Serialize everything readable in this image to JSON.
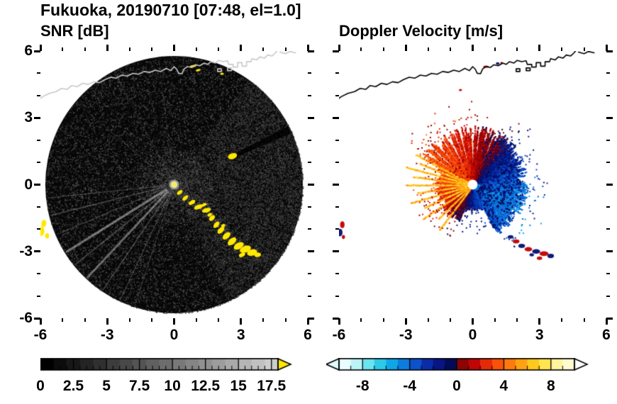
{
  "title": "Fukuoka, 20190710 [07:48, el=1.0]",
  "panels": {
    "snr": {
      "subtitle": "SNR [dB]"
    },
    "doppler": {
      "subtitle": "Doppler Velocity [m/s]"
    }
  },
  "chart_data": [
    {
      "type": "heatmap",
      "title": "SNR [dB]",
      "xlim": [
        -6,
        6
      ],
      "ylim": [
        -6,
        6
      ],
      "xticks": [
        -6,
        -3,
        0,
        3,
        6
      ],
      "yticks": [
        -6,
        -3,
        0,
        3,
        6
      ],
      "minor_tick_step": 1,
      "colorbar": {
        "range": [
          0,
          18
        ],
        "major_ticks": [
          0,
          2.5,
          5,
          7.5,
          10,
          12.5,
          15,
          17.5
        ],
        "minor_step": 0.5,
        "colormap": "grayscale",
        "gray_max": 205,
        "over_arrow_color": "#ffe600"
      },
      "scene": {
        "disk_color": "#060606",
        "radius": 5.78,
        "noise_points": 26000,
        "spokes": [
          [
            186,
            1.2,
            0.28
          ],
          [
            194,
            1.4,
            0.3
          ],
          [
            203,
            1.2,
            0.25
          ],
          [
            212,
            3.2,
            0.5
          ],
          [
            219,
            1.6,
            0.3
          ],
          [
            227,
            3.0,
            0.45
          ],
          [
            236,
            1.4,
            0.3
          ],
          [
            245,
            1.2,
            0.26
          ],
          [
            252,
            1.0,
            0.22
          ],
          [
            118,
            1.0,
            0.14
          ],
          [
            140,
            1.0,
            0.12
          ],
          [
            97,
            1.0,
            0.1
          ]
        ],
        "east_haze_angles": [
          -65,
          55
        ],
        "shadow_wedge": {
          "angle": 25.5,
          "from_r": 3.0,
          "width_deg": 3.5
        },
        "clutter_color": "#ffe800",
        "clutter_blobs": [
          [
            0.25,
            -0.35,
            0.28,
            0.16,
            -35
          ],
          [
            0.5,
            -0.6,
            0.3,
            0.16,
            -40
          ],
          [
            0.8,
            -0.8,
            0.34,
            0.18,
            -30
          ],
          [
            1.1,
            -1.0,
            0.42,
            0.2,
            -20
          ],
          [
            1.45,
            -1.15,
            0.4,
            0.2,
            -15
          ],
          [
            1.35,
            -0.9,
            0.22,
            0.14,
            -20
          ],
          [
            1.7,
            -1.5,
            0.3,
            0.2,
            -45
          ],
          [
            1.9,
            -1.8,
            0.34,
            0.2,
            -50
          ],
          [
            2.1,
            -2.05,
            0.38,
            0.22,
            -45
          ],
          [
            2.35,
            -2.3,
            0.42,
            0.24,
            -40
          ],
          [
            2.6,
            -2.55,
            0.46,
            0.26,
            -40
          ],
          [
            2.9,
            -2.75,
            0.5,
            0.28,
            -30
          ],
          [
            3.2,
            -2.9,
            0.52,
            0.3,
            -20
          ],
          [
            3.5,
            -3.05,
            0.46,
            0.28,
            -15
          ],
          [
            3.75,
            -3.15,
            0.3,
            0.2,
            -10
          ],
          [
            3.05,
            -3.15,
            0.3,
            0.18,
            -25
          ],
          [
            2.2,
            -1.85,
            0.2,
            0.14,
            -40
          ],
          [
            1.6,
            -1.35,
            0.22,
            0.14,
            -30
          ],
          [
            2.62,
            1.28,
            0.42,
            0.26,
            -18
          ],
          [
            -5.85,
            -1.75,
            0.22,
            0.34,
            10
          ],
          [
            -5.95,
            -2.1,
            0.26,
            0.4,
            5
          ],
          [
            -5.7,
            -2.3,
            0.18,
            0.24,
            0
          ],
          [
            0.85,
            5.32,
            0.3,
            0.1,
            -10
          ],
          [
            1.08,
            5.14,
            0.22,
            0.1,
            -15
          ],
          [
            2.15,
            4.98,
            0.16,
            0.1,
            0
          ]
        ],
        "coastline_color": "#c9c9c9"
      }
    },
    {
      "type": "heatmap",
      "title": "Doppler Velocity [m/s]",
      "xlim": [
        -6,
        6
      ],
      "ylim": [
        -6,
        6
      ],
      "xticks": [
        -6,
        -3,
        0,
        3,
        6
      ],
      "yticks": [
        -6,
        -3,
        0,
        3,
        6
      ],
      "minor_tick_step": 1,
      "colorbar": {
        "range": [
          -10,
          10
        ],
        "major_ticks": [
          -8,
          -4,
          0,
          4,
          8
        ],
        "minor_step": 1,
        "under_arrow_color": "#dffbfb",
        "over_arrow_color": "#ffffff",
        "segment_colors": [
          "#e8feff",
          "#baf3f8",
          "#6ae4f0",
          "#2cc9e8",
          "#0fa6e8",
          "#0d7ce0",
          "#0b52cc",
          "#0a2ca8",
          "#071682",
          "#040b56",
          "#8c0404",
          "#c00505",
          "#e62a07",
          "#fb5109",
          "#ff7a0d",
          "#ffa212",
          "#ffc81e",
          "#ffe550",
          "#fff39e",
          "#fffbd0"
        ]
      },
      "scene": {
        "blue_dir_deg": 335,
        "amplitude": 4.4,
        "noise": 1.3,
        "white_gaps": [
          [
            68,
            1.2
          ],
          [
            76,
            1.0
          ],
          [
            84,
            1.3
          ],
          [
            91,
            2.0
          ],
          [
            97,
            1.0
          ],
          [
            104,
            1.2
          ],
          [
            110,
            1.0
          ],
          [
            117,
            2.0
          ],
          [
            124,
            1.2
          ],
          [
            131,
            1.0
          ],
          [
            138,
            1.4
          ],
          [
            145,
            1.0
          ],
          [
            342,
            0.8
          ],
          [
            5,
            0.7
          ]
        ],
        "orange_streaks": [
          [
            152,
            2.9
          ],
          [
            158,
            2.6
          ],
          [
            165,
            3.1
          ],
          [
            172,
            2.7
          ],
          [
            180,
            3.0
          ],
          [
            188,
            2.5
          ],
          [
            196,
            2.9
          ],
          [
            205,
            2.4
          ],
          [
            214,
            2.7
          ],
          [
            224,
            2.2
          ],
          [
            233,
            2.5
          ]
        ],
        "center_dot": {
          "radius": 0.22,
          "color": "#ffffff"
        },
        "clutter_blobs": [
          [
            1.7,
            -2.35,
            0.26,
            0.16,
            "#101a78"
          ],
          [
            1.95,
            -2.55,
            0.3,
            0.18,
            "#c60b0b"
          ],
          [
            2.2,
            -2.75,
            0.3,
            0.18,
            "#101a78"
          ],
          [
            2.5,
            -2.9,
            0.34,
            0.2,
            "#c60b0b"
          ],
          [
            2.85,
            -3.0,
            0.36,
            0.2,
            "#101a78"
          ],
          [
            3.2,
            -3.1,
            0.4,
            0.22,
            "#c60b0b"
          ],
          [
            3.5,
            -3.2,
            0.3,
            0.2,
            "#101a78"
          ],
          [
            3.0,
            -3.3,
            0.24,
            0.16,
            "#c60b0b"
          ],
          [
            2.65,
            -3.15,
            0.2,
            0.14,
            "#101a78"
          ],
          [
            -5.85,
            -1.8,
            0.2,
            0.3,
            "#c60b0b"
          ],
          [
            -5.95,
            -2.15,
            0.22,
            0.34,
            "#101a78"
          ],
          [
            -5.8,
            -2.35,
            0.14,
            0.18,
            "#c60b0b"
          ],
          [
            0.6,
            5.3,
            0.26,
            0.1,
            "#c60b0b"
          ],
          [
            1.12,
            5.44,
            0.16,
            0.12,
            "#101a78"
          ],
          [
            1.3,
            5.47,
            0.12,
            0.08,
            "#c60b0b"
          ],
          [
            -0.55,
            4.25,
            0.14,
            0.1,
            "#c60b0b"
          ]
        ],
        "coastline_color": "#000000"
      }
    }
  ],
  "coastline": [
    [
      -6.25,
      3.7
    ],
    [
      -5.9,
      3.95
    ],
    [
      -5.6,
      4.1
    ],
    [
      -5.3,
      4.18
    ],
    [
      -5.05,
      4.32
    ],
    [
      -4.8,
      4.28
    ],
    [
      -4.6,
      4.45
    ],
    [
      -4.35,
      4.4
    ],
    [
      -4.1,
      4.55
    ],
    [
      -3.85,
      4.5
    ],
    [
      -3.6,
      4.62
    ],
    [
      -3.35,
      4.58
    ],
    [
      -3.1,
      4.72
    ],
    [
      -2.85,
      4.82
    ],
    [
      -2.6,
      4.78
    ],
    [
      -2.35,
      4.92
    ],
    [
      -2.1,
      4.88
    ],
    [
      -1.85,
      5.0
    ],
    [
      -1.6,
      4.96
    ],
    [
      -1.35,
      5.08
    ],
    [
      -1.1,
      5.04
    ],
    [
      -0.85,
      5.14
    ],
    [
      -0.6,
      5.08
    ],
    [
      -0.35,
      5.22
    ],
    [
      -0.15,
      5.12
    ],
    [
      0.0,
      5.3
    ],
    [
      0.12,
      5.18
    ],
    [
      0.2,
      5.0
    ],
    [
      0.35,
      4.98
    ],
    [
      0.45,
      5.2
    ],
    [
      0.6,
      5.3
    ],
    [
      0.8,
      5.26
    ],
    [
      0.95,
      5.38
    ],
    [
      1.15,
      5.34
    ],
    [
      1.35,
      5.46
    ],
    [
      1.5,
      5.4
    ],
    [
      1.65,
      5.52
    ],
    [
      1.85,
      5.46
    ],
    [
      2.0,
      5.58
    ],
    [
      2.2,
      5.52
    ],
    [
      2.4,
      5.56
    ],
    [
      2.45,
      5.4
    ],
    [
      2.65,
      5.4
    ],
    [
      2.65,
      5.28
    ],
    [
      2.85,
      5.28
    ],
    [
      2.85,
      5.48
    ],
    [
      3.05,
      5.48
    ],
    [
      3.05,
      5.32
    ],
    [
      3.25,
      5.32
    ],
    [
      3.25,
      5.52
    ],
    [
      3.45,
      5.52
    ],
    [
      3.5,
      5.66
    ],
    [
      3.7,
      5.6
    ],
    [
      3.85,
      5.74
    ],
    [
      4.05,
      5.68
    ],
    [
      4.2,
      5.82
    ],
    [
      4.4,
      5.78
    ],
    [
      4.55,
      5.92
    ],
    [
      4.65,
      6.05
    ]
  ],
  "coastline_extras": [
    [
      [
        1.95,
        5.08
      ],
      [
        2.12,
        5.08
      ],
      [
        2.12,
        5.2
      ],
      [
        1.95,
        5.2
      ],
      [
        1.95,
        5.08
      ]
    ],
    [
      [
        2.4,
        5.12
      ],
      [
        2.58,
        5.12
      ],
      [
        2.58,
        5.24
      ],
      [
        2.4,
        5.24
      ],
      [
        2.4,
        5.12
      ]
    ],
    [
      [
        4.75,
        5.95
      ],
      [
        5.0,
        5.88
      ],
      [
        5.2,
        5.98
      ],
      [
        5.45,
        5.92
      ]
    ]
  ]
}
